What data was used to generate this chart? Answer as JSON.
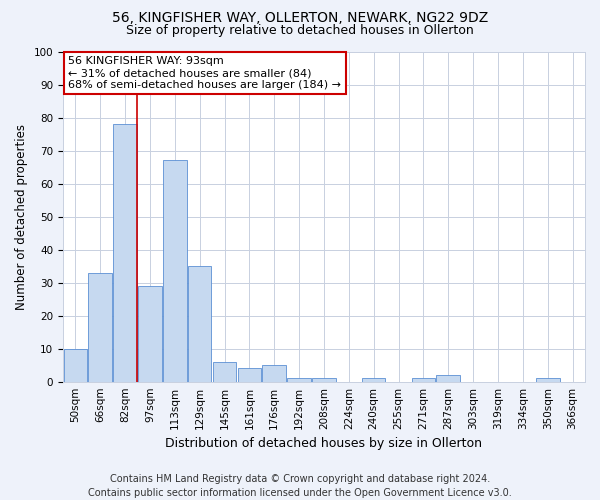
{
  "title_line1": "56, KINGFISHER WAY, OLLERTON, NEWARK, NG22 9DZ",
  "title_line2": "Size of property relative to detached houses in Ollerton",
  "xlabel": "Distribution of detached houses by size in Ollerton",
  "ylabel": "Number of detached properties",
  "categories": [
    "50sqm",
    "66sqm",
    "82sqm",
    "97sqm",
    "113sqm",
    "129sqm",
    "145sqm",
    "161sqm",
    "176sqm",
    "192sqm",
    "208sqm",
    "224sqm",
    "240sqm",
    "255sqm",
    "271sqm",
    "287sqm",
    "303sqm",
    "319sqm",
    "334sqm",
    "350sqm",
    "366sqm"
  ],
  "values": [
    10,
    33,
    78,
    29,
    67,
    35,
    6,
    4,
    5,
    1,
    1,
    0,
    1,
    0,
    1,
    2,
    0,
    0,
    0,
    1,
    0
  ],
  "bar_color": "#c6d9f0",
  "bar_edge_color": "#5b8fd4",
  "vline_color": "#cc0000",
  "vline_x_index": 2.5,
  "annotation_line1": "56 KINGFISHER WAY: 93sqm",
  "annotation_line2": "← 31% of detached houses are smaller (84)",
  "annotation_line3": "68% of semi-detached houses are larger (184) →",
  "annotation_box_color": "white",
  "annotation_box_edge_color": "#cc0000",
  "ylim": [
    0,
    100
  ],
  "yticks": [
    0,
    10,
    20,
    30,
    40,
    50,
    60,
    70,
    80,
    90,
    100
  ],
  "footer_line1": "Contains HM Land Registry data © Crown copyright and database right 2024.",
  "footer_line2": "Contains public sector information licensed under the Open Government Licence v3.0.",
  "background_color": "#eef2fa",
  "plot_bg_color": "#ffffff",
  "grid_color": "#c8d0e0",
  "title_fontsize": 10,
  "subtitle_fontsize": 9,
  "annotation_fontsize": 8,
  "footer_fontsize": 7,
  "tick_fontsize": 7.5,
  "ylabel_fontsize": 8.5,
  "xlabel_fontsize": 9
}
